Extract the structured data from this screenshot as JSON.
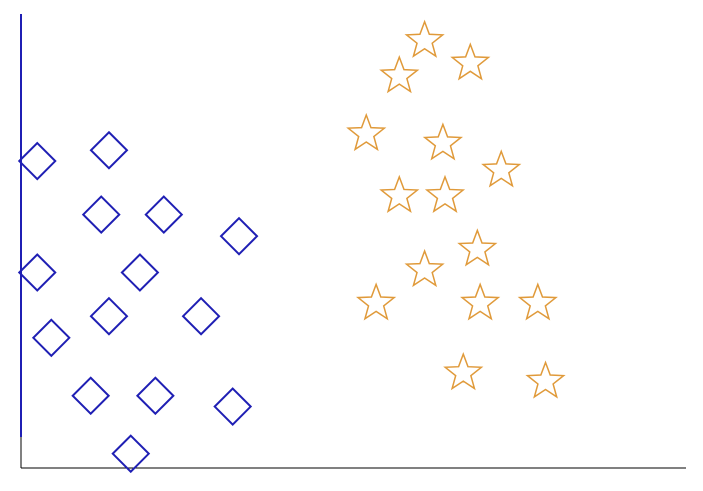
{
  "chart_data": {
    "type": "scatter",
    "title": "",
    "xlabel": "",
    "ylabel": "",
    "xlim": [
      0,
      100
    ],
    "ylim": [
      0,
      100
    ],
    "grid": false,
    "series": [
      {
        "marker": "diamond",
        "color": "#1f1fb4",
        "points": [
          {
            "x": 5.3,
            "y": 67.2
          },
          {
            "x": 15.5,
            "y": 69.4
          },
          {
            "x": 14.4,
            "y": 56.3
          },
          {
            "x": 23.3,
            "y": 56.3
          },
          {
            "x": 34.0,
            "y": 51.9
          },
          {
            "x": 5.3,
            "y": 44.5
          },
          {
            "x": 19.9,
            "y": 44.5
          },
          {
            "x": 15.5,
            "y": 35.6
          },
          {
            "x": 28.6,
            "y": 35.6
          },
          {
            "x": 7.3,
            "y": 31.2
          },
          {
            "x": 12.9,
            "y": 19.4
          },
          {
            "x": 22.1,
            "y": 19.4
          },
          {
            "x": 33.1,
            "y": 17.2
          },
          {
            "x": 18.6,
            "y": 7.6
          }
        ]
      },
      {
        "marker": "star",
        "color": "#e09a3a",
        "points": [
          {
            "x": 60.4,
            "y": 91.7
          },
          {
            "x": 56.8,
            "y": 84.5
          },
          {
            "x": 66.9,
            "y": 87.1
          },
          {
            "x": 52.1,
            "y": 72.7
          },
          {
            "x": 63.0,
            "y": 70.8
          },
          {
            "x": 71.3,
            "y": 65.3
          },
          {
            "x": 56.8,
            "y": 60.1
          },
          {
            "x": 63.3,
            "y": 60.1
          },
          {
            "x": 67.9,
            "y": 49.2
          },
          {
            "x": 60.4,
            "y": 45.0
          },
          {
            "x": 53.5,
            "y": 38.2
          },
          {
            "x": 68.3,
            "y": 38.2
          },
          {
            "x": 76.5,
            "y": 38.2
          },
          {
            "x": 65.9,
            "y": 24.0
          },
          {
            "x": 77.6,
            "y": 22.3
          }
        ]
      }
    ]
  }
}
